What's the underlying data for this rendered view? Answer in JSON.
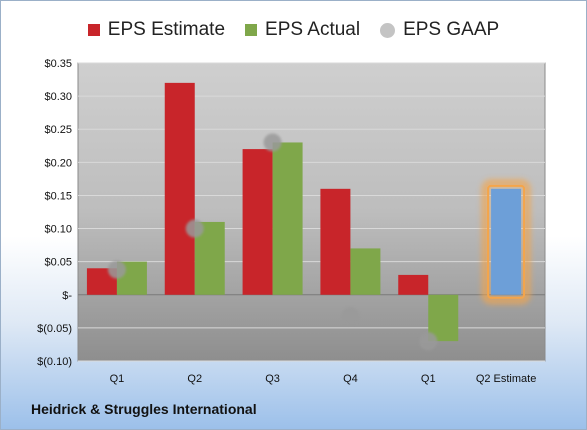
{
  "legend": {
    "estimate": "EPS Estimate",
    "actual": "EPS Actual",
    "gaap": "EPS GAAP"
  },
  "footer": {
    "company": "Heidrick & Struggles International"
  },
  "colors": {
    "estimate": "#c8252a",
    "actual": "#7fa74a",
    "gaap": "#b3b3b3",
    "projected": "#6d9fd8",
    "highlight": "#f5a54a",
    "plot_bg": "#b5b5b5"
  },
  "chart_data": {
    "type": "bar",
    "categories": [
      "Q1",
      "Q2",
      "Q3",
      "Q4",
      "Q1",
      "Q2 Estimate"
    ],
    "series": [
      {
        "name": "EPS Estimate",
        "values": [
          0.04,
          0.32,
          0.22,
          0.16,
          0.03,
          null
        ]
      },
      {
        "name": "EPS Actual",
        "values": [
          0.05,
          0.11,
          0.23,
          0.07,
          -0.07,
          0.16
        ]
      },
      {
        "name": "EPS GAAP",
        "values": [
          0.038,
          0.1,
          0.23,
          -0.032,
          -0.07,
          null
        ]
      }
    ],
    "projected_index": 5,
    "ylim": [
      -0.1,
      0.35
    ],
    "yticks": [
      0.35,
      0.3,
      0.25,
      0.2,
      0.15,
      0.1,
      0.05,
      0,
      -0.05,
      -0.1
    ],
    "ytick_labels": [
      "$0.35",
      "$0.30",
      "$0.25",
      "$0.20",
      "$0.15",
      "$0.10",
      "$0.05",
      "$-",
      "$(0.05)",
      "$(0.10)"
    ],
    "grid": true,
    "legend_position": "top"
  }
}
